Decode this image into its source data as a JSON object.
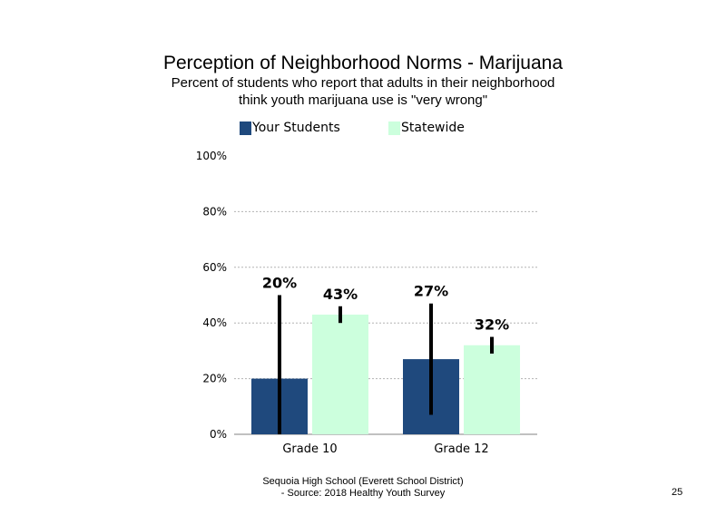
{
  "header": {
    "title": "Perception of Neighborhood Norms - Marijuana",
    "subtitle_line1": "Percent of students who report that adults in their neighborhood",
    "subtitle_line2": "think youth marijuana use is \"very wrong\""
  },
  "legend": {
    "your_students": "Your Students",
    "statewide": "Statewide"
  },
  "colors": {
    "your_students": "#1f497d",
    "statewide": "#ccffdd",
    "error_bar": "#000000",
    "gridline": "#b3b3b3",
    "axis": "#808080"
  },
  "chart_data": {
    "type": "bar",
    "categories": [
      "Grade 10",
      "Grade 12"
    ],
    "series": [
      {
        "name": "Your Students",
        "values": [
          20,
          27
        ],
        "labels": [
          "20%",
          "27%"
        ],
        "ci_low": [
          0,
          7
        ],
        "ci_high": [
          50,
          47
        ]
      },
      {
        "name": "Statewide",
        "values": [
          43,
          32
        ],
        "labels": [
          "43%",
          "32%"
        ],
        "ci_low": [
          40,
          29
        ],
        "ci_high": [
          46,
          35
        ]
      }
    ],
    "yticks": [
      "0%",
      "20%",
      "40%",
      "60%",
      "80%",
      "100%"
    ],
    "ylim": [
      0,
      100
    ],
    "grid": true,
    "legend_position": "top"
  },
  "footer": {
    "line1": "Sequoia High School (Everett School District)",
    "line2": "- Source: 2018 Healthy Youth Survey"
  },
  "page_number": "25"
}
